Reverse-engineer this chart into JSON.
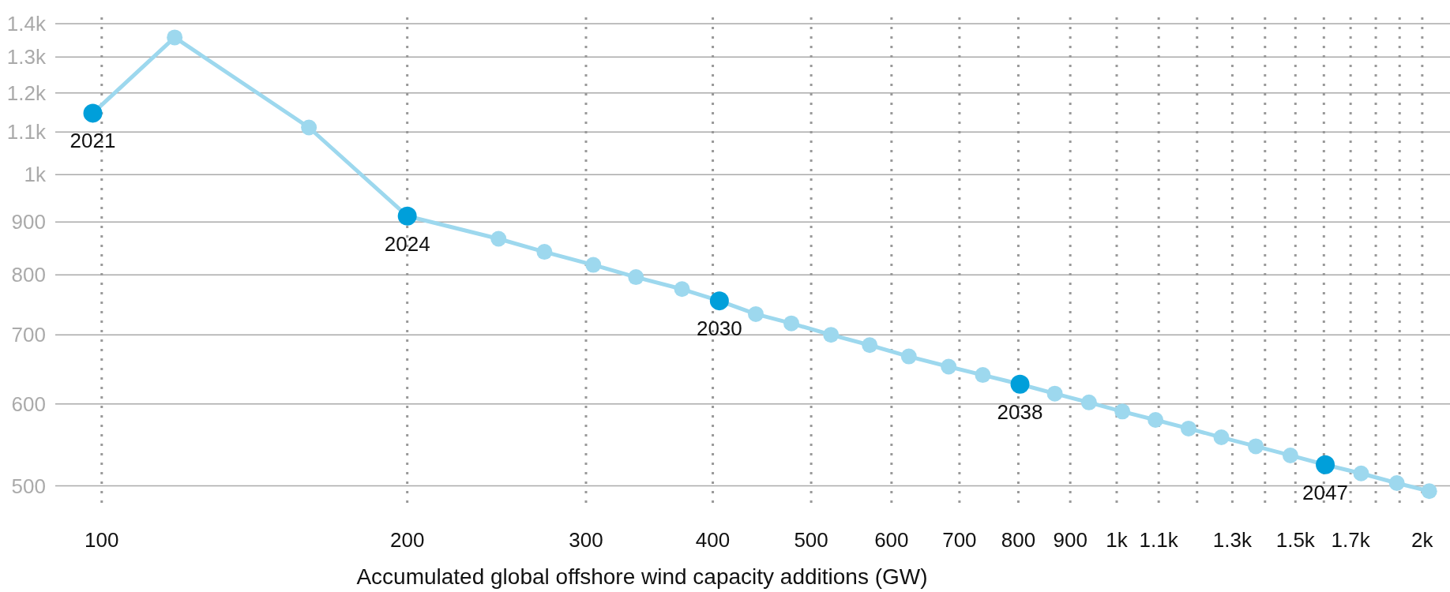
{
  "chart_data": {
    "type": "line",
    "xlabel": "Accumulated global offshore wind capacity additions (GW)",
    "x": [
      98,
      118,
      160,
      200,
      246,
      273,
      305,
      336,
      373,
      406,
      441,
      478,
      523,
      571,
      624,
      683,
      738,
      803,
      869,
      939,
      1013,
      1092,
      1177,
      1268,
      1371,
      1483,
      1605,
      1741,
      1888,
      2032
    ],
    "series": [
      {
        "color": "#9dd8ee",
        "colors": [
          "#009fda",
          "#9dd8ee",
          "#9dd8ee",
          "#009fda",
          "#9dd8ee",
          "#9dd8ee",
          "#9dd8ee",
          "#9dd8ee",
          "#9dd8ee",
          "#009fda",
          "#9dd8ee",
          "#9dd8ee",
          "#9dd8ee",
          "#9dd8ee",
          "#9dd8ee",
          "#9dd8ee",
          "#9dd8ee",
          "#009fda",
          "#9dd8ee",
          "#9dd8ee",
          "#9dd8ee",
          "#9dd8ee",
          "#9dd8ee",
          "#9dd8ee",
          "#9dd8ee",
          "#9dd8ee",
          "#009fda",
          "#9dd8ee",
          "#9dd8ee",
          "#9dd8ee"
        ],
        "values": [
          1147,
          1358,
          1111,
          912,
          867,
          842,
          818,
          796,
          775,
          755,
          733,
          718,
          700,
          684,
          667,
          652,
          640,
          627,
          614,
          602,
          590,
          579,
          568,
          557,
          546,
          535,
          524,
          514,
          503,
          494
        ]
      }
    ],
    "annotations": [
      {
        "text": "2021",
        "x": 98,
        "y": 1147
      },
      {
        "text": "2024",
        "x": 200,
        "y": 912
      },
      {
        "text": "2030",
        "x": 406,
        "y": 755
      },
      {
        "text": "2038",
        "x": 803,
        "y": 627
      },
      {
        "text": "2047",
        "x": 1605,
        "y": 524
      }
    ],
    "log": "xy",
    "xlim": [
      90,
      2130
    ],
    "ylim": [
      478,
      1420
    ],
    "xticks": [
      100,
      200,
      300,
      400,
      500,
      600,
      700,
      800,
      900,
      {
        "value": 1000,
        "label": "1k"
      },
      {
        "value": 1100,
        "label": "1.1k"
      },
      {
        "value": 1200,
        "label": null
      },
      {
        "value": 1300,
        "label": "1.3k"
      },
      {
        "value": 1400,
        "label": null
      },
      {
        "value": 1500,
        "label": "1.5k"
      },
      {
        "value": 1600,
        "label": null
      },
      {
        "value": 1700,
        "label": "1.7k"
      },
      {
        "value": 1800,
        "label": null
      },
      {
        "value": 1900,
        "label": null
      },
      {
        "value": 2000,
        "label": "2k"
      }
    ],
    "yticks": [
      500,
      600,
      700,
      800,
      900,
      {
        "value": 1000,
        "label": "1k"
      },
      {
        "value": 1100,
        "label": "1.1k"
      },
      {
        "value": 1200,
        "label": "1.2k"
      },
      {
        "value": 1300,
        "label": "1.3k"
      },
      {
        "value": 1400,
        "label": "1.4k"
      }
    ],
    "grid": true,
    "marker": "circle",
    "line_style": "solid"
  }
}
